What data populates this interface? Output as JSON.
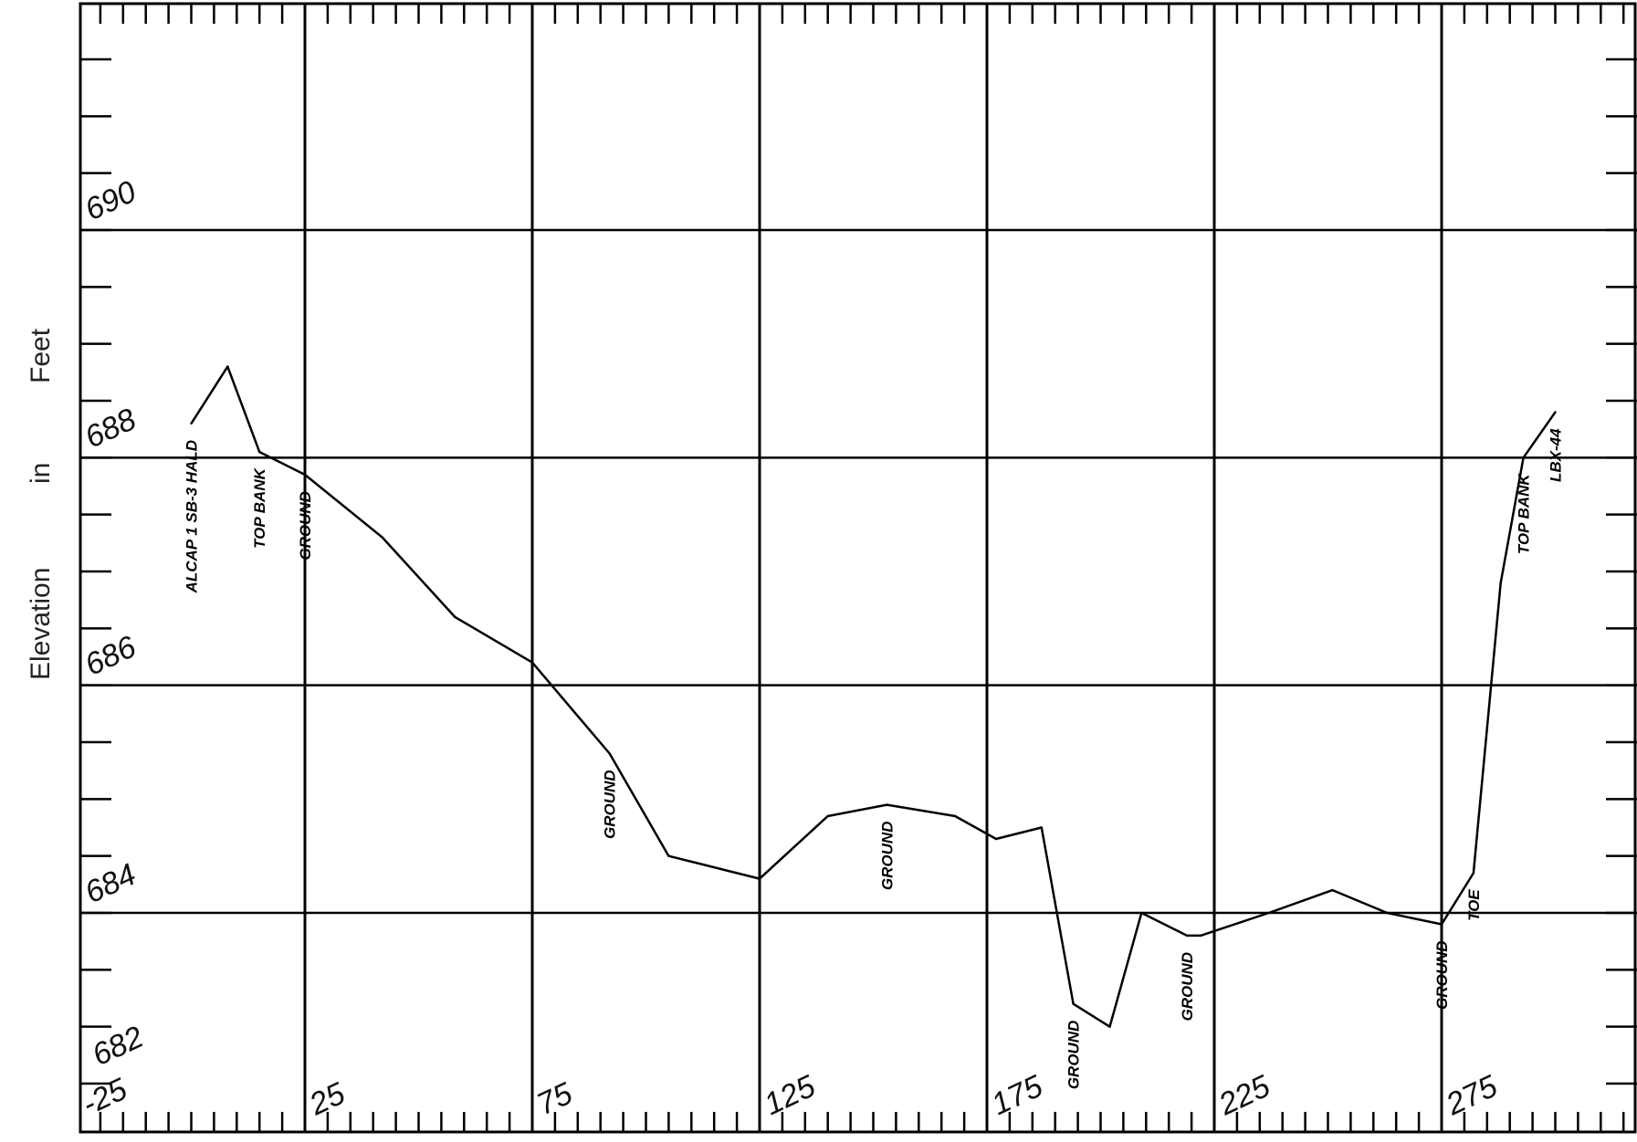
{
  "chart_data": {
    "type": "line",
    "title": "",
    "xlabel": "",
    "ylabel": "Elevation in Feet",
    "ylabel_words": [
      "Elevation",
      "in",
      "Feet"
    ],
    "xlim": [
      -25,
      325
    ],
    "ylim": [
      682,
      691
    ],
    "grid": true,
    "x_ticks": [
      -25,
      25,
      75,
      125,
      175,
      225,
      275
    ],
    "x_tick_labels": [
      "-25",
      "25",
      "75",
      "125",
      "175",
      "225",
      "275"
    ],
    "y_ticks": [
      684,
      686,
      688,
      690
    ],
    "y_tick_labels": [
      "684",
      "686",
      "688",
      "690"
    ],
    "y_corner_label": "682",
    "series": [
      {
        "x": [
          0,
          8,
          15,
          25,
          42,
          58,
          75,
          92,
          105,
          125,
          140,
          153,
          168,
          177,
          187,
          194,
          202,
          209,
          219,
          222,
          237,
          251,
          263,
          275,
          282,
          288,
          293,
          300
        ],
        "y": [
          688.3,
          688.8,
          688.05,
          687.85,
          687.3,
          686.6,
          686.2,
          685.4,
          684.5,
          684.3,
          684.85,
          684.95,
          684.85,
          684.65,
          684.75,
          683.2,
          683.0,
          684.0,
          683.8,
          683.8,
          684.0,
          684.2,
          684.0,
          683.9,
          684.35,
          686.9,
          688.0,
          688.4
        ]
      }
    ],
    "annotations": [
      {
        "text": "ALCAP 1 SB-3 HALD",
        "x": 0,
        "y": 688.3
      },
      {
        "text": "TOP BANK",
        "x": 15,
        "y": 688.05
      },
      {
        "text": "GROUND",
        "x": 25,
        "y": 687.85
      },
      {
        "text": "GROUND",
        "x": 92,
        "y": 685.4
      },
      {
        "text": "GROUND",
        "x": 153,
        "y": 684.95
      },
      {
        "text": "GROUND",
        "x": 194,
        "y": 683.2
      },
      {
        "text": "GROUND",
        "x": 219,
        "y": 683.8
      },
      {
        "text": "GROUND",
        "x": 275,
        "y": 683.9
      },
      {
        "text": "TOE",
        "x": 282,
        "y": 684.35
      },
      {
        "text": "TOP BANK",
        "x": 293,
        "y": 688.0
      },
      {
        "text": "LBX-44",
        "x": 300,
        "y": 688.4
      }
    ]
  }
}
